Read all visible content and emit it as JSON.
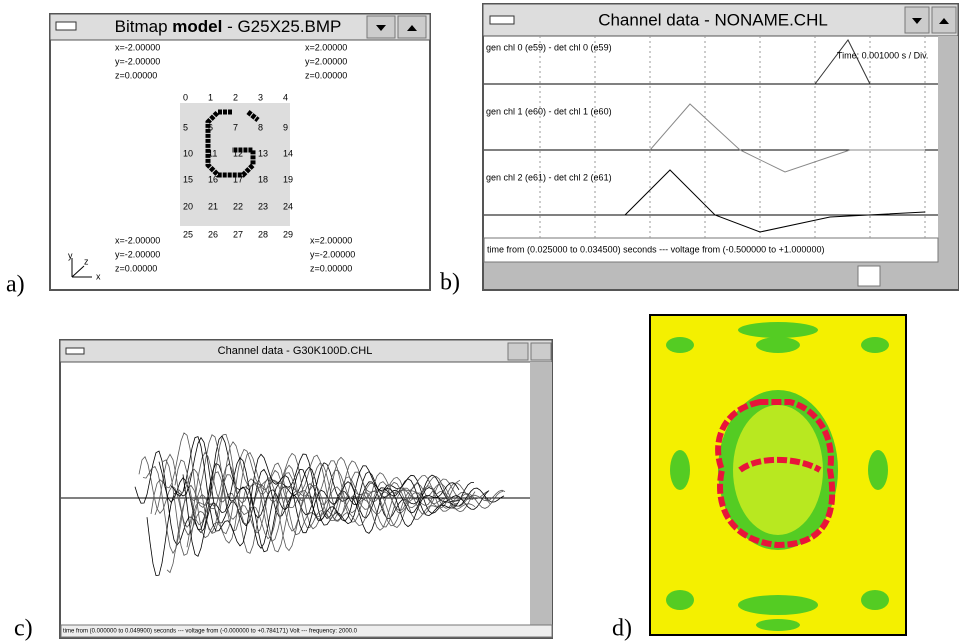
{
  "panel_a": {
    "label": "a)",
    "title_parts": [
      "Bitmap",
      "model",
      "- G25X25.BMP"
    ],
    "corners": {
      "top_left": [
        "x=-2.00000",
        "y=-2.00000",
        "z=0.00000"
      ],
      "top_right": [
        "x=2.00000",
        "y=2.00000",
        "z=0.00000"
      ],
      "bottom_left": [
        "x=-2.00000",
        "y=-2.00000",
        "z=0.00000"
      ],
      "bottom_right": [
        "x=2.00000",
        "y=-2.00000",
        "z=0.00000"
      ]
    },
    "grid_numbers": [
      0,
      1,
      2,
      3,
      4,
      5,
      6,
      7,
      8,
      9,
      10,
      11,
      12,
      13,
      14,
      15,
      16,
      17,
      18,
      19,
      20,
      21,
      22,
      23,
      24,
      25,
      26,
      27,
      28,
      29
    ],
    "axis_labels": [
      "y",
      "z",
      "x"
    ]
  },
  "panel_b": {
    "label": "b)",
    "title": "Channel data - NONAME.CHL",
    "channel_labels": [
      "gen chl 0 (e59) - det chl 0 (e59)",
      "gen chl 1 (e60) - det chl 1 (e60)",
      "gen chl 2 (e61) - det chl 2 (e61)"
    ],
    "time_label": "Time:",
    "time_div": "0.001000 s / Div.",
    "status": "time from (0.025000 to 0.034500) seconds --- voltage from (-0.500000 to +1.000000)"
  },
  "panel_c": {
    "label": "c)",
    "title": "Channel data - G30K100D.CHL",
    "status": "time from (0.000000 to 0.049900) seconds --- voltage from (-0.000000 to +0.784171) Volt --- frequency: 2000.0"
  },
  "panel_d": {
    "label": "d)"
  }
}
